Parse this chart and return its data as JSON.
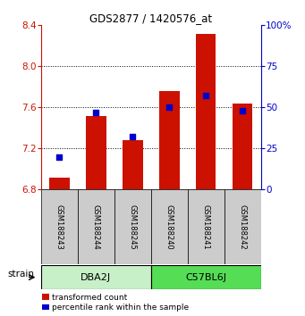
{
  "title": "GDS2877 / 1420576_at",
  "samples": [
    "GSM188243",
    "GSM188244",
    "GSM188245",
    "GSM188240",
    "GSM188241",
    "GSM188242"
  ],
  "bar_values": [
    6.92,
    7.52,
    7.28,
    7.76,
    8.32,
    7.64
  ],
  "bar_base": 6.8,
  "percentile_rank": [
    20,
    47,
    32,
    50,
    57,
    48
  ],
  "ylim_left": [
    6.8,
    8.4
  ],
  "ylim_right": [
    0,
    100
  ],
  "yticks_left": [
    6.8,
    7.2,
    7.6,
    8.0,
    8.4
  ],
  "yticks_right": [
    0,
    25,
    50,
    75,
    100
  ],
  "groups": [
    {
      "name": "DBA2J",
      "indices": [
        0,
        1,
        2
      ],
      "color": "#c8f0c8"
    },
    {
      "name": "C57BL6J",
      "indices": [
        3,
        4,
        5
      ],
      "color": "#55dd55"
    }
  ],
  "bar_color": "#cc1100",
  "blue_color": "#0000cc",
  "axis_color_left": "#cc1100",
  "axis_color_right": "#0000cc",
  "sample_box_color": "#cccccc",
  "legend_items": [
    {
      "label": "transformed count",
      "color": "#cc1100"
    },
    {
      "label": "percentile rank within the sample",
      "color": "#0000cc"
    }
  ],
  "strain_label": "strain",
  "bar_width": 0.55,
  "grid_yticks": [
    7.2,
    7.6,
    8.0
  ]
}
